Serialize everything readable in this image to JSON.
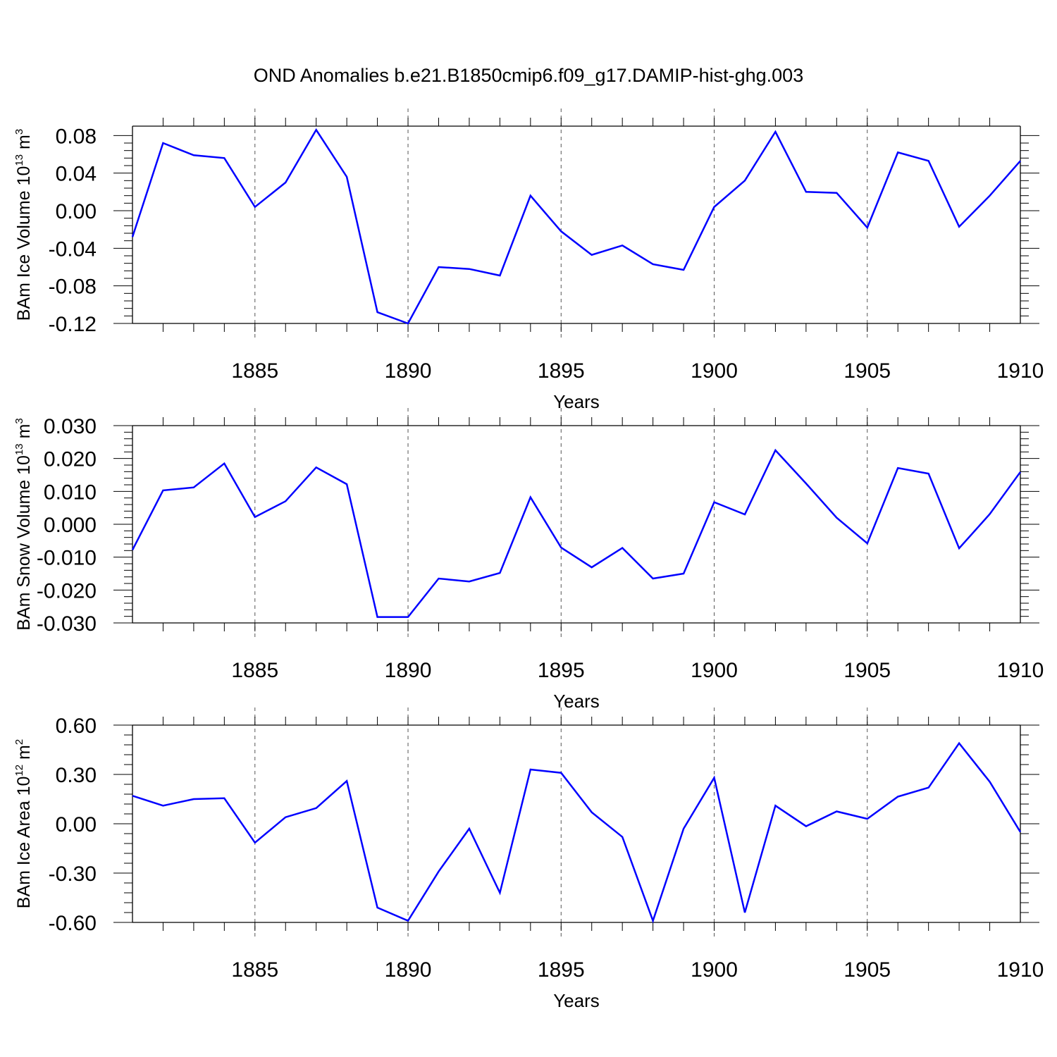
{
  "title": "OND Anomalies b.e21.B1850cmip6.f09_g17.DAMIP-hist-ghg.003",
  "line_color": "#0000ff",
  "chart_data": [
    {
      "type": "line",
      "ylabel": "BAm Ice Volume 10",
      "ylabel_exp": "13",
      "ylabel_unit": "m",
      "ylabel_unit_exp": "3",
      "xlabel": "Years",
      "xlim": [
        1881,
        1910
      ],
      "ylim": [
        -0.12,
        0.09
      ],
      "yticks": [
        "0.08",
        "0.04",
        "0.00",
        "-0.04",
        "-0.08",
        "-0.12"
      ],
      "ytick_values": [
        0.08,
        0.04,
        0.0,
        -0.04,
        -0.08,
        -0.12
      ],
      "xticks": [
        "1885",
        "1890",
        "1895",
        "1900",
        "1905",
        "1910"
      ],
      "grid_x": [
        1885,
        1890,
        1895,
        1900,
        1905
      ],
      "x": [
        1881,
        1882,
        1883,
        1884,
        1885,
        1886,
        1887,
        1888,
        1889,
        1890,
        1891,
        1892,
        1893,
        1894,
        1895,
        1896,
        1897,
        1898,
        1899,
        1900,
        1901,
        1902,
        1903,
        1904,
        1905,
        1906,
        1907,
        1908,
        1909,
        1910
      ],
      "series": [
        {
          "values": [
            -0.028,
            0.072,
            0.059,
            0.056,
            0.004,
            0.03,
            0.086,
            0.036,
            -0.108,
            -0.12,
            -0.06,
            -0.062,
            -0.069,
            0.016,
            -0.022,
            -0.047,
            -0.037,
            -0.057,
            -0.063,
            0.004,
            0.032,
            0.084,
            0.02,
            0.019,
            -0.018,
            0.062,
            0.053,
            -0.017,
            0.016,
            0.053
          ]
        }
      ]
    },
    {
      "type": "line",
      "ylabel": "BAm Snow Volume 10",
      "ylabel_exp": "13",
      "ylabel_unit": "m",
      "ylabel_unit_exp": "3",
      "xlabel": "Years",
      "xlim": [
        1881,
        1910
      ],
      "ylim": [
        -0.03,
        0.03
      ],
      "yticks": [
        "0.030",
        "0.020",
        "0.010",
        "0.000",
        "-0.010",
        "-0.020",
        "-0.030"
      ],
      "ytick_values": [
        0.03,
        0.02,
        0.01,
        0.0,
        -0.01,
        -0.02,
        -0.03
      ],
      "xticks": [
        "1885",
        "1890",
        "1895",
        "1900",
        "1905",
        "1910"
      ],
      "grid_x": [
        1885,
        1890,
        1895,
        1900,
        1905
      ],
      "x": [
        1881,
        1882,
        1883,
        1884,
        1885,
        1886,
        1887,
        1888,
        1889,
        1890,
        1891,
        1892,
        1893,
        1894,
        1895,
        1896,
        1897,
        1898,
        1899,
        1900,
        1901,
        1902,
        1903,
        1904,
        1905,
        1906,
        1907,
        1908,
        1909,
        1910
      ],
      "series": [
        {
          "values": [
            -0.0078,
            0.0103,
            0.0112,
            0.0185,
            0.0022,
            0.007,
            0.0173,
            0.0122,
            -0.0282,
            -0.0282,
            -0.0165,
            -0.0174,
            -0.0148,
            0.0082,
            -0.0071,
            -0.0131,
            -0.0072,
            -0.0165,
            -0.015,
            0.0067,
            0.003,
            0.0225,
            0.0124,
            0.002,
            -0.0058,
            0.0171,
            0.0154,
            -0.0073,
            0.0031,
            0.0159
          ]
        }
      ]
    },
    {
      "type": "line",
      "ylabel": "BAm Ice Area 10",
      "ylabel_exp": "12",
      "ylabel_unit": "m",
      "ylabel_unit_exp": "2",
      "xlabel": "Years",
      "xlim": [
        1881,
        1910
      ],
      "ylim": [
        -0.6,
        0.6
      ],
      "yticks": [
        "0.60",
        "0.30",
        "0.00",
        "-0.30",
        "-0.60"
      ],
      "ytick_values": [
        0.6,
        0.3,
        0.0,
        -0.3,
        -0.6
      ],
      "xticks": [
        "1885",
        "1890",
        "1895",
        "1900",
        "1905",
        "1910"
      ],
      "grid_x": [
        1885,
        1890,
        1895,
        1900,
        1905
      ],
      "x": [
        1881,
        1882,
        1883,
        1884,
        1885,
        1886,
        1887,
        1888,
        1889,
        1890,
        1891,
        1892,
        1893,
        1894,
        1895,
        1896,
        1897,
        1898,
        1899,
        1900,
        1901,
        1902,
        1903,
        1904,
        1905,
        1906,
        1907,
        1908,
        1909,
        1910
      ],
      "series": [
        {
          "values": [
            0.17,
            0.11,
            0.15,
            0.155,
            -0.115,
            0.04,
            0.095,
            0.26,
            -0.51,
            -0.59,
            -0.29,
            -0.03,
            -0.42,
            0.33,
            0.31,
            0.07,
            -0.08,
            -0.59,
            -0.03,
            0.28,
            -0.54,
            0.11,
            -0.015,
            0.075,
            0.03,
            0.165,
            0.22,
            0.49,
            0.255,
            -0.05
          ]
        }
      ]
    }
  ]
}
